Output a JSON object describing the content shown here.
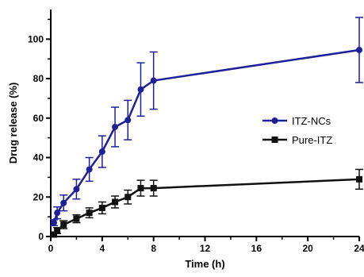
{
  "chart_data": {
    "type": "line",
    "xlabel": "Time (h)",
    "ylabel": "Drug release (%)",
    "xlim": [
      0,
      24
    ],
    "ylim": [
      0,
      115
    ],
    "x_ticks": [
      0,
      4,
      8,
      12,
      16,
      20,
      24
    ],
    "y_ticks": [
      0,
      20,
      40,
      60,
      80,
      100
    ],
    "x_tick_labels": [
      "0",
      "4",
      "8",
      "12",
      "16",
      "20",
      "24"
    ],
    "y_tick_labels": [
      "0",
      "20",
      "40",
      "60",
      "80",
      "100"
    ],
    "grid": false,
    "legend_position": "right",
    "series": [
      {
        "name": "ITZ-NCs",
        "color": "#1f1f99",
        "marker": "circle",
        "x": [
          0.25,
          0.5,
          1,
          2,
          3,
          4,
          5,
          6,
          7,
          8,
          24
        ],
        "y": [
          7,
          12,
          17,
          24,
          34,
          43,
          55.5,
          59,
          74.5,
          79,
          94.5
        ],
        "error": [
          1.5,
          3,
          4,
          5,
          6,
          8,
          10,
          10,
          13.5,
          14.5,
          16.5
        ]
      },
      {
        "name": "Pure-ITZ",
        "color": "#111111",
        "marker": "square",
        "x": [
          0.25,
          0.5,
          1,
          2,
          3,
          4,
          5,
          6,
          7,
          8,
          24
        ],
        "y": [
          1,
          3,
          6,
          9,
          12,
          14.5,
          17.5,
          20,
          24.5,
          24.5,
          29
        ],
        "error": [
          1,
          1.5,
          2,
          2,
          2.5,
          3,
          3,
          3.5,
          4,
          4,
          5
        ]
      }
    ]
  }
}
